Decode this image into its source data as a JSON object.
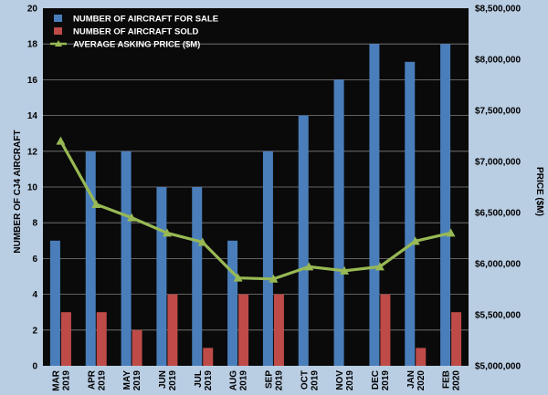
{
  "chart_data": {
    "type": "bar",
    "title": "",
    "categories": [
      [
        "MAR",
        "2019"
      ],
      [
        "APR",
        "2019"
      ],
      [
        "MAY",
        "2019"
      ],
      [
        "JUN",
        "2019"
      ],
      [
        "JUL",
        "2019"
      ],
      [
        "AUG",
        "2019"
      ],
      [
        "SEP",
        "2019"
      ],
      [
        "OCT",
        "2019"
      ],
      [
        "NOV",
        "2019"
      ],
      [
        "DEC",
        "2019"
      ],
      [
        "JAN",
        "2020"
      ],
      [
        "FEB",
        "2020"
      ]
    ],
    "series": [
      {
        "name": "NUMBER OF AIRCRAFT FOR SALE",
        "type": "bar",
        "axis": "left",
        "color": "#4a7ebb",
        "values": [
          7,
          12,
          12,
          10,
          10,
          7,
          12,
          14,
          16,
          18,
          17,
          18
        ]
      },
      {
        "name": "NUMBER OF AIRCRAFT SOLD",
        "type": "bar",
        "axis": "left",
        "color": "#be4b48",
        "values": [
          3,
          3,
          2,
          4,
          1,
          4,
          4,
          0,
          0,
          4,
          1,
          3
        ]
      },
      {
        "name": "AVERAGE ASKING PRICE ($M)",
        "type": "line",
        "axis": "right",
        "color": "#98b954",
        "values": [
          7200000,
          6580000,
          6450000,
          6300000,
          6210000,
          5860000,
          5850000,
          5970000,
          5930000,
          5970000,
          6220000,
          6300000
        ]
      }
    ],
    "ylabel": "NUMBER OF CJ4 AIRCRAFT",
    "ylim": [
      0,
      20
    ],
    "yticks": [
      "0",
      "2",
      "4",
      "6",
      "8",
      "10",
      "12",
      "14",
      "16",
      "18",
      "20"
    ],
    "y2label": "PRICE ($M)",
    "y2lim": [
      5000000,
      8500000
    ],
    "y2ticks": [
      "$5,000,000",
      "$5,500,000",
      "$6,000,000",
      "$6,500,000",
      "$7,000,000",
      "$7,500,000",
      "$8,000,000",
      "$8,500,000"
    ],
    "grid": true,
    "legend": "top-left",
    "colors": {
      "background": "#b9cde3",
      "plot_area": "#0a0a0a",
      "gridline": "#7f7f7f"
    }
  }
}
